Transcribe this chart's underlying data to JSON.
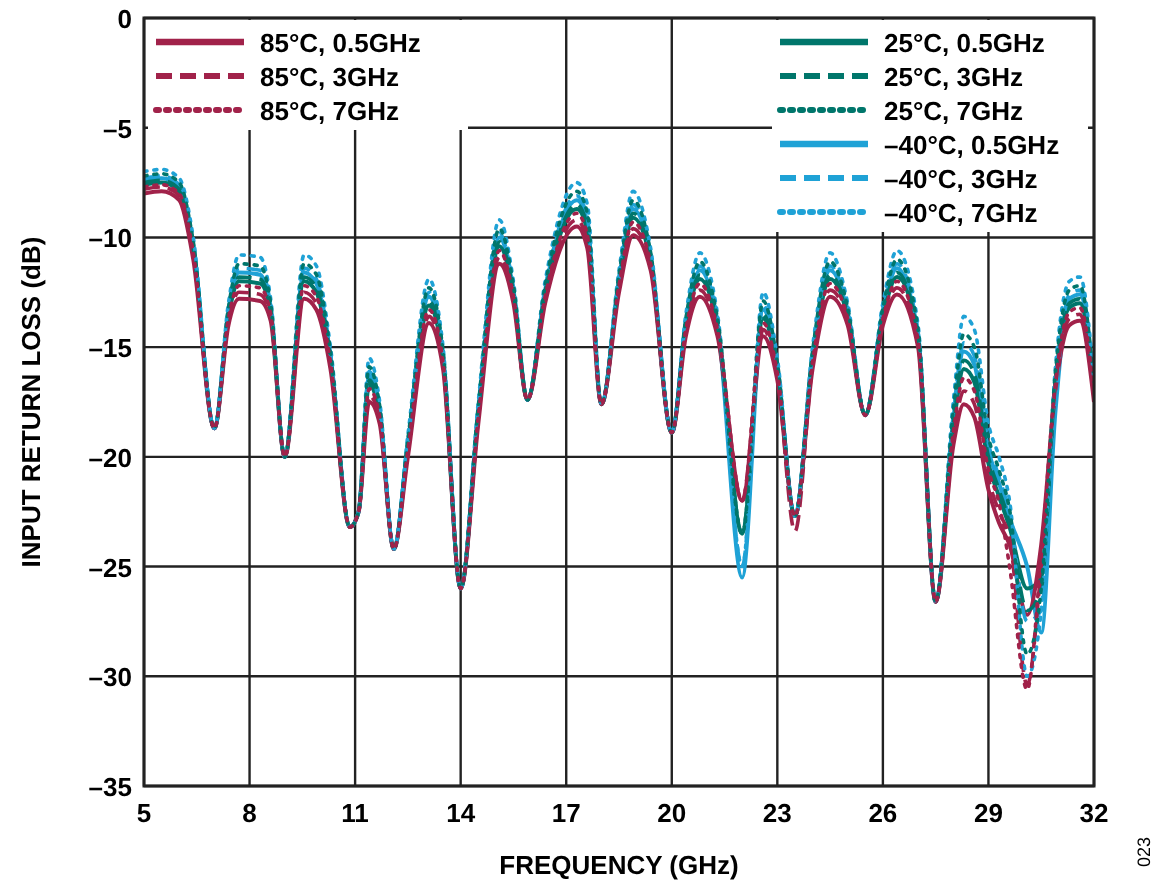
{
  "chart_data": {
    "type": "line",
    "xlabel": "FREQUENCY (GHz)",
    "ylabel": "INPUT RETURN LOSS (dB)",
    "x": [
      5,
      5.5,
      6,
      6.4,
      7,
      7.4,
      7.7,
      8.3,
      8.6,
      9,
      9.55,
      9.9,
      10.3,
      10.85,
      11.1,
      11.4,
      11.7,
      12.1,
      12.5,
      13.1,
      13.5,
      14,
      14.5,
      15.1,
      15.5,
      15.9,
      16.4,
      17.3,
      17.6,
      18,
      18.5,
      18.9,
      19.4,
      20,
      20.4,
      20.8,
      21.3,
      22,
      22.6,
      23,
      23.5,
      24,
      24.5,
      25,
      25.5,
      26,
      26.4,
      27,
      27.5,
      28,
      28.3,
      28.6,
      29,
      29.3,
      29.6,
      30.1,
      30.5,
      30.9,
      31.3,
      31.6,
      32
    ],
    "xlim": [
      5,
      32
    ],
    "xticks": [
      5,
      8,
      11,
      14,
      17,
      20,
      23,
      26,
      29,
      32
    ],
    "ylim": [
      -35,
      0
    ],
    "yticks": [
      {
        "value": -35,
        "label": "–35"
      },
      {
        "value": -30,
        "label": "–30"
      },
      {
        "value": -25,
        "label": "–25"
      },
      {
        "value": -20,
        "label": "–20"
      },
      {
        "value": -15,
        "label": "–15"
      },
      {
        "value": -10,
        "label": "–10"
      },
      {
        "value": -5,
        "label": "–5"
      },
      0
    ],
    "grid": true,
    "legend": "top",
    "marker": "none",
    "annotations": [
      "023"
    ],
    "series": [
      {
        "name": "85°C, 0.5GHz",
        "color": "#a1224a",
        "line_style": "solid",
        "values": [
          -8.0,
          -7.9,
          -8.3,
          -11,
          -18.7,
          -14,
          -12.8,
          -12.9,
          -13.8,
          -20,
          -12.8,
          -13.3,
          -16,
          -23.2,
          -22.5,
          -17.5,
          -18.5,
          -24.2,
          -20,
          -13.9,
          -16,
          -26,
          -18.5,
          -11.2,
          -13,
          -17.4,
          -13,
          -9.5,
          -10.5,
          -17.6,
          -12.5,
          -9.9,
          -11.5,
          -18.9,
          -14.5,
          -12.7,
          -14.5,
          -22,
          -14.5,
          -16.5,
          -22.7,
          -16,
          -12.7,
          -14,
          -18.1,
          -14,
          -12.6,
          -15,
          -26.6,
          -19.5,
          -17.6,
          -18.2,
          -21.5,
          -23,
          -24,
          -27.2,
          -24,
          -17,
          -14,
          -13.8,
          -17.5
        ]
      },
      {
        "name": "85°C, 3GHz",
        "color": "#a1224a",
        "line_style": "dashed",
        "values": [
          -7.8,
          -7.7,
          -8.1,
          -10.8,
          -18.7,
          -13.8,
          -12.5,
          -12.6,
          -13.6,
          -20,
          -12.5,
          -13,
          -15.8,
          -23.2,
          -22.5,
          -17.2,
          -18.3,
          -24.2,
          -19.8,
          -13.6,
          -15.8,
          -26,
          -18.3,
          -10.9,
          -12.8,
          -17.4,
          -12.8,
          -9.2,
          -10.2,
          -17.6,
          -12.3,
          -9.6,
          -11.3,
          -18.9,
          -14.3,
          -12.4,
          -14.3,
          -22,
          -14.2,
          -16.3,
          -23.4,
          -15.8,
          -12.4,
          -13.8,
          -18.1,
          -13.8,
          -12.3,
          -14.8,
          -26.6,
          -19.2,
          -17,
          -17.6,
          -21,
          -22.5,
          -23.7,
          -30.4,
          -25,
          -16.8,
          -13.7,
          -13.5,
          -17.3
        ]
      },
      {
        "name": "85°C, 7GHz",
        "color": "#a1224a",
        "line_style": "dotted",
        "values": [
          -7.7,
          -7.6,
          -8,
          -10.7,
          -18.7,
          -13.7,
          -12.2,
          -12.3,
          -13.5,
          -20,
          -12.2,
          -12.7,
          -15.7,
          -23.2,
          -22.5,
          -16.9,
          -18.2,
          -24.2,
          -19.7,
          -13.3,
          -15.7,
          -26,
          -18.2,
          -10.6,
          -12.7,
          -17.4,
          -12.7,
          -8.9,
          -9.9,
          -17.6,
          -12.2,
          -9.3,
          -11.2,
          -18.9,
          -14.2,
          -12.1,
          -14.2,
          -22,
          -13.9,
          -16.2,
          -22.7,
          -15.7,
          -12.1,
          -13.7,
          -18.1,
          -13.7,
          -12,
          -14.7,
          -26.6,
          -18.9,
          -16.4,
          -17,
          -20.6,
          -22.1,
          -25,
          -30.6,
          -24.5,
          -16.7,
          -13.4,
          -13.2,
          -17.2
        ]
      },
      {
        "name": "25°C, 0.5GHz",
        "color": "#00766b",
        "line_style": "solid",
        "values": [
          -7.6,
          -7.5,
          -7.9,
          -10.6,
          -18.7,
          -13.6,
          -12,
          -12.1,
          -13.4,
          -20,
          -12,
          -12.5,
          -15.6,
          -23.2,
          -22.5,
          -16.7,
          -18.1,
          -24.2,
          -19.6,
          -13.1,
          -15.6,
          -26,
          -18.1,
          -10.4,
          -12.6,
          -17.4,
          -12.6,
          -8.7,
          -9.7,
          -17.6,
          -12.1,
          -9.1,
          -11.1,
          -18.9,
          -14.1,
          -11.9,
          -14.1,
          -23.5,
          -13.7,
          -16.1,
          -22.7,
          -15.6,
          -11.9,
          -13.6,
          -18.1,
          -13.6,
          -11.8,
          -14.6,
          -26.6,
          -18.7,
          -16,
          -16.6,
          -20.3,
          -21.8,
          -23.2,
          -26,
          -25.5,
          -16.6,
          -13.2,
          -13,
          -17.1
        ]
      },
      {
        "name": "25°C, 3GHz",
        "color": "#00766b",
        "line_style": "dashed",
        "values": [
          -7.5,
          -7.4,
          -7.8,
          -10.5,
          -18.7,
          -13.5,
          -11.8,
          -11.9,
          -13.3,
          -20,
          -11.8,
          -12.3,
          -15.5,
          -23.2,
          -22.5,
          -16.5,
          -18,
          -24.2,
          -19.5,
          -12.9,
          -15.5,
          -26,
          -18,
          -10.2,
          -12.5,
          -17.4,
          -12.5,
          -8.5,
          -9.5,
          -17.6,
          -12,
          -8.9,
          -11,
          -18.9,
          -14,
          -11.7,
          -14,
          -23.5,
          -13.5,
          -16,
          -22.7,
          -15.5,
          -11.7,
          -13.5,
          -18.1,
          -13.5,
          -11.6,
          -14.5,
          -26.6,
          -18.5,
          -15.6,
          -16.2,
          -20,
          -21.5,
          -23,
          -27,
          -26,
          -16.5,
          -13,
          -12.8,
          -17
        ]
      },
      {
        "name": "25°C, 7GHz",
        "color": "#00766b",
        "line_style": "dotted",
        "values": [
          -7.2,
          -7.1,
          -7.5,
          -10.2,
          -18.7,
          -13.2,
          -11.2,
          -11.3,
          -13,
          -20,
          -11.2,
          -11.7,
          -15.2,
          -23.2,
          -22.5,
          -15.9,
          -17.7,
          -24.2,
          -19.2,
          -12.3,
          -15.2,
          -26,
          -17.7,
          -9.6,
          -12.2,
          -17.4,
          -12.2,
          -7.9,
          -8.9,
          -17.6,
          -11.7,
          -8.3,
          -10.7,
          -18.9,
          -13.7,
          -11.1,
          -13.7,
          -23.5,
          -12.9,
          -15.7,
          -22.7,
          -15.2,
          -11.1,
          -13.2,
          -18.1,
          -13.2,
          -11,
          -14.2,
          -26.6,
          -17.9,
          -14.4,
          -15,
          -19.1,
          -20.6,
          -22.4,
          -29,
          -26,
          -16.2,
          -12.4,
          -12.2,
          -16.7
        ]
      },
      {
        "name": "–40°C, 0.5GHz",
        "color": "#1fa2d6",
        "line_style": "solid",
        "values": [
          -7.4,
          -7.3,
          -7.7,
          -10.4,
          -18.7,
          -13.4,
          -11.6,
          -11.7,
          -13.2,
          -20,
          -11.6,
          -12.1,
          -15.4,
          -23.2,
          -22.5,
          -16.3,
          -17.9,
          -24.2,
          -19.4,
          -12.7,
          -15.4,
          -26,
          -17.9,
          -10,
          -12.4,
          -17.4,
          -12.4,
          -8.3,
          -9.3,
          -17.6,
          -11.9,
          -8.7,
          -10.9,
          -18.9,
          -13.9,
          -11.5,
          -13.9,
          -25.5,
          -13.3,
          -15.9,
          -22.7,
          -15.4,
          -11.5,
          -13.4,
          -18.1,
          -13.4,
          -11.4,
          -14.4,
          -26.6,
          -18.3,
          -15.2,
          -15.8,
          -19.7,
          -21.2,
          -22.8,
          -25,
          -28,
          -18,
          -12.8,
          -12.6,
          -16.9
        ]
      },
      {
        "name": "–40°C, 3GHz",
        "color": "#1fa2d6",
        "line_style": "dashed",
        "values": [
          -7.3,
          -7.2,
          -7.6,
          -10.3,
          -18.7,
          -13.3,
          -11.4,
          -11.5,
          -13.1,
          -20,
          -11.4,
          -11.9,
          -15.3,
          -23.2,
          -22.5,
          -16.1,
          -17.8,
          -24.2,
          -19.3,
          -12.5,
          -15.3,
          -26,
          -17.8,
          -9.8,
          -12.3,
          -17.4,
          -12.3,
          -8.1,
          -9.1,
          -17.6,
          -11.8,
          -8.5,
          -10.8,
          -18.9,
          -13.8,
          -11.3,
          -13.8,
          -25,
          -13.1,
          -15.8,
          -22.7,
          -15.3,
          -11.3,
          -13.3,
          -18.1,
          -13.3,
          -11.2,
          -14.3,
          -26.6,
          -18.1,
          -14.8,
          -15.4,
          -19.4,
          -20.9,
          -22.6,
          -27.5,
          -27,
          -17.5,
          -12.6,
          -12.4,
          -16.8
        ]
      },
      {
        "name": "–40°C, 7GHz",
        "color": "#1fa2d6",
        "line_style": "dotted",
        "values": [
          -7,
          -6.9,
          -7.3,
          -10,
          -18.7,
          -13,
          -10.8,
          -10.9,
          -12.8,
          -20,
          -10.8,
          -11.3,
          -15,
          -23.2,
          -22.5,
          -15.5,
          -17.5,
          -24.2,
          -19,
          -11.9,
          -15,
          -26,
          -17.5,
          -9.2,
          -12,
          -17.4,
          -12,
          -7.5,
          -8.5,
          -17.6,
          -11.5,
          -7.9,
          -10.5,
          -18.9,
          -13.5,
          -10.7,
          -13.5,
          -25,
          -12.5,
          -15.5,
          -22.7,
          -15,
          -10.7,
          -13,
          -18.1,
          -13,
          -10.6,
          -14,
          -26.6,
          -17.5,
          -13.6,
          -14.2,
          -18.5,
          -20,
          -22,
          -30,
          -27,
          -16,
          -12,
          -11.8,
          -16.5
        ]
      }
    ]
  }
}
